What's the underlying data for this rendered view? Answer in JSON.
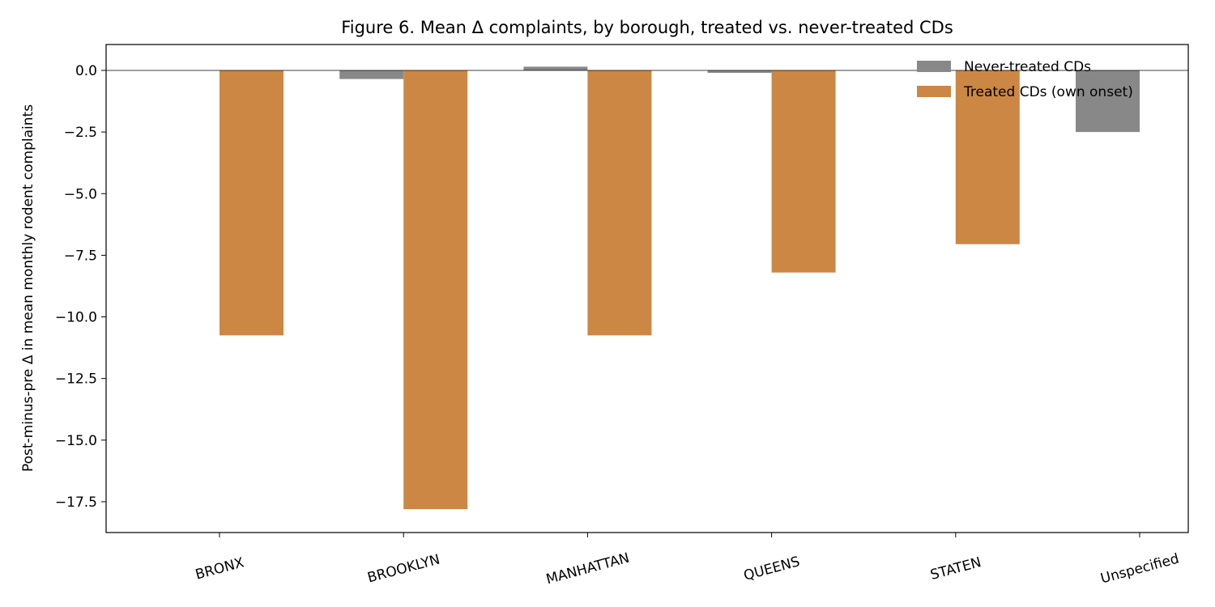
{
  "chart_data": {
    "type": "bar",
    "title": "Figure 6. Mean Δ complaints, by borough, treated vs. never-treated CDs",
    "xlabel": "",
    "ylabel": "Post-minus-pre Δ in mean monthly rodent complaints",
    "categories": [
      "BRONX",
      "BROOKLYN",
      "MANHATTAN",
      "QUEENS",
      "STATEN",
      "Unspecified"
    ],
    "series": [
      {
        "name": "Never-treated CDs",
        "color": "#888888",
        "values": [
          null,
          -0.35,
          0.15,
          -0.1,
          null,
          -2.5
        ]
      },
      {
        "name": "Treated CDs (own onset)",
        "color": "#CD8744",
        "values": [
          -10.75,
          -17.8,
          -10.75,
          -8.2,
          -7.05,
          null
        ]
      }
    ],
    "ylim": [
      -18.75,
      1.05
    ],
    "yticks": [
      0.0,
      -2.5,
      -5.0,
      -7.5,
      -10.0,
      -12.5,
      -15.0,
      -17.5
    ],
    "ytick_labels": [
      "0.0",
      "−2.5",
      "−5.0",
      "−7.5",
      "−10.0",
      "−12.5",
      "−15.0",
      "−17.5"
    ],
    "grid": false,
    "zero_line": true,
    "legend_placement": "top-right"
  }
}
